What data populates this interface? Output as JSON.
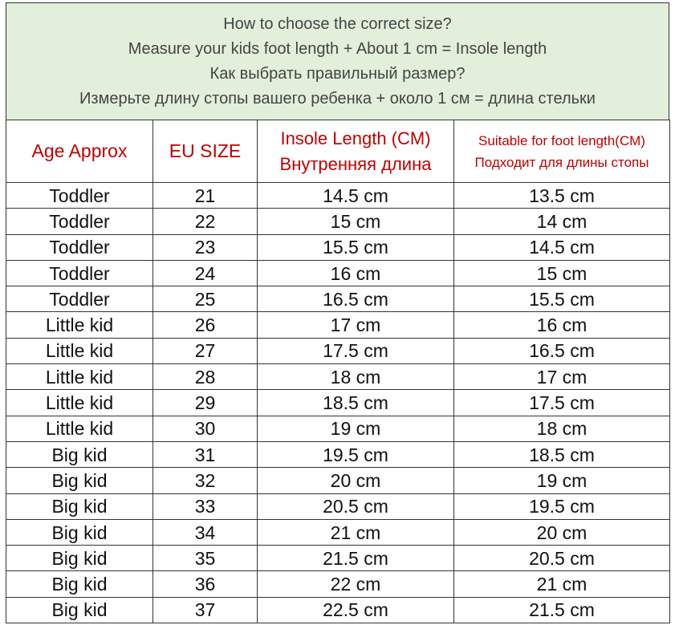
{
  "banner": {
    "line1": "How to choose the correct size?",
    "line2": "Measure your kids foot length + About 1 cm = Insole length",
    "line3": "Как выбрать правильный размер?",
    "line4": "Измерьте длину стопы вашего ребенка + около 1 см = длина стельки"
  },
  "headers": {
    "age": "Age Approx",
    "eu": "EU SIZE",
    "insole_en": "Insole Length (CM)",
    "insole_ru": "Внутренняя длина",
    "foot_en": "Suitable for foot length(CM)",
    "foot_ru": "Подходит для длины стопы"
  },
  "colors": {
    "banner_bg": "#e2efda",
    "header_text": "#c00000"
  },
  "rows": [
    [
      "Toddler",
      "21",
      "14.5 cm",
      "13.5 cm"
    ],
    [
      "Toddler",
      "22",
      "15 cm",
      "14 cm"
    ],
    [
      "Toddler",
      "23",
      "15.5 cm",
      "14.5 cm"
    ],
    [
      "Toddler",
      "24",
      "16 cm",
      "15 cm"
    ],
    [
      "Toddler",
      "25",
      "16.5 cm",
      "15.5 cm"
    ],
    [
      "Little kid",
      "26",
      "17 cm",
      "16 cm"
    ],
    [
      "Little kid",
      "27",
      "17.5 cm",
      "16.5 cm"
    ],
    [
      "Little kid",
      "28",
      "18 cm",
      "17 cm"
    ],
    [
      "Little kid",
      "29",
      "18.5 cm",
      "17.5 cm"
    ],
    [
      "Little kid",
      "30",
      "19 cm",
      "18 cm"
    ],
    [
      "Big kid",
      "31",
      "19.5 cm",
      "18.5 cm"
    ],
    [
      "Big kid",
      "32",
      "20 cm",
      "19 cm"
    ],
    [
      "Big kid",
      "33",
      "20.5 cm",
      "19.5 cm"
    ],
    [
      "Big kid",
      "34",
      "21 cm",
      "20 cm"
    ],
    [
      "Big kid",
      "35",
      "21.5 cm",
      "20.5 cm"
    ],
    [
      "Big kid",
      "36",
      "22 cm",
      "21 cm"
    ],
    [
      "Big kid",
      "37",
      "22.5 cm",
      "21.5 cm"
    ]
  ]
}
